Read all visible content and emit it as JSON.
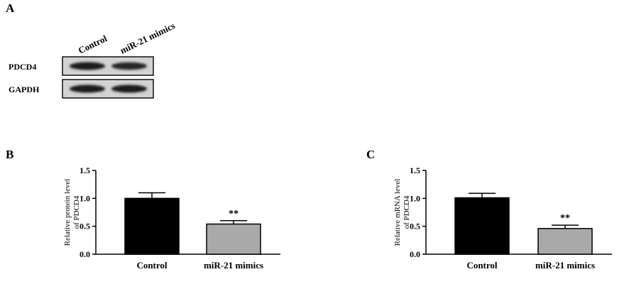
{
  "panels": {
    "a": "A",
    "b": "B",
    "c": "C"
  },
  "blot": {
    "lanes": [
      "Control",
      "miR-21 mimics"
    ],
    "rows": [
      {
        "name": "PDCD4",
        "intensity": [
          1.0,
          0.85
        ]
      },
      {
        "name": "GAPDH",
        "intensity": [
          1.0,
          1.0
        ]
      }
    ],
    "band_color": "#1a1a1a",
    "membrane_color": "#d2d2d2"
  },
  "chart_data": [
    {
      "type": "bar",
      "categories": [
        "Control",
        "miR-21 mimics"
      ],
      "values": [
        1.0,
        0.54
      ],
      "errors": [
        0.1,
        0.06
      ],
      "bar_colors": [
        "#000000",
        "#a9a9a9"
      ],
      "annotations": [
        "",
        "**"
      ],
      "ylabel": "Relative protein level of PDCD4",
      "ylabel_lines": [
        "Relative protein level",
        "of PDCD4"
      ],
      "ylim": [
        0,
        1.5
      ],
      "yticks": [
        "0.0",
        "0.5",
        "1.0",
        "1.5"
      ],
      "ytick_values": [
        0,
        0.5,
        1.0,
        1.5
      ],
      "grid": false
    },
    {
      "type": "bar",
      "categories": [
        "Control",
        "miR-21 mimics"
      ],
      "values": [
        1.01,
        0.46
      ],
      "errors": [
        0.08,
        0.06
      ],
      "bar_colors": [
        "#000000",
        "#a9a9a9"
      ],
      "annotations": [
        "",
        "**"
      ],
      "ylabel": "Relative mRNA level of PDCD4",
      "ylabel_lines": [
        "Relative mRNA level",
        "of PDCD4"
      ],
      "ylim": [
        0,
        1.5
      ],
      "yticks": [
        "0.0",
        "0.5",
        "1.0",
        "1.5"
      ],
      "ytick_values": [
        0,
        0.5,
        1.0,
        1.5
      ],
      "grid": false
    }
  ]
}
